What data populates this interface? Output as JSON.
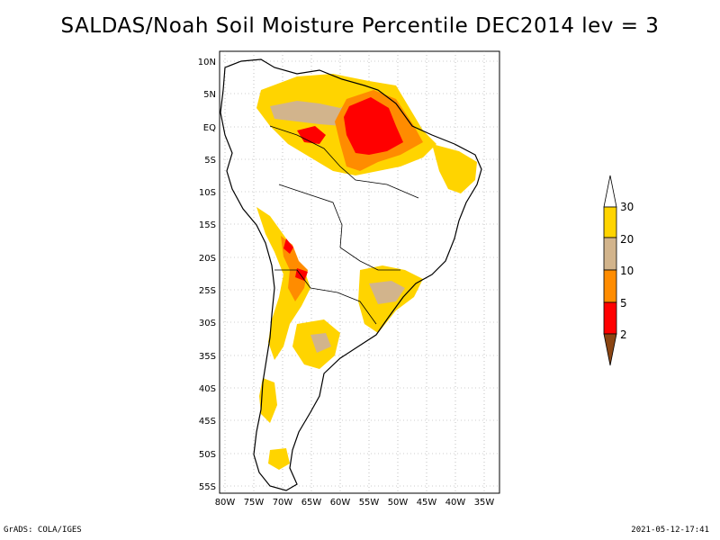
{
  "title": "SALDAS/Noah Soil Moisture Percentile DEC2014 lev = 3",
  "footer": {
    "left": "GrADS: COLA/IGES",
    "right": "2021-05-12-17:41"
  },
  "map": {
    "lat_labels": [
      "10N",
      "5N",
      "EQ",
      "5S",
      "10S",
      "15S",
      "20S",
      "25S",
      "30S",
      "35S",
      "40S",
      "45S",
      "50S",
      "55S"
    ],
    "lon_labels": [
      "80W",
      "75W",
      "70W",
      "65W",
      "60W",
      "55W",
      "50W",
      "45W",
      "40W",
      "35W"
    ]
  },
  "legend": {
    "labels": [
      "30",
      "20",
      "10",
      "5",
      "2"
    ],
    "colors": {
      "above_30": "#ffffff",
      "20_30": "#ffd400",
      "10_20": "#d2b48c",
      "5_10": "#ff8c00",
      "2_5": "#ff0000",
      "below_2": "#8b4513"
    }
  },
  "colors": {
    "yellow": "#ffd400",
    "tan": "#d2b48c",
    "orange": "#ff8c00",
    "red": "#ff0000",
    "brown": "#8b4513"
  }
}
